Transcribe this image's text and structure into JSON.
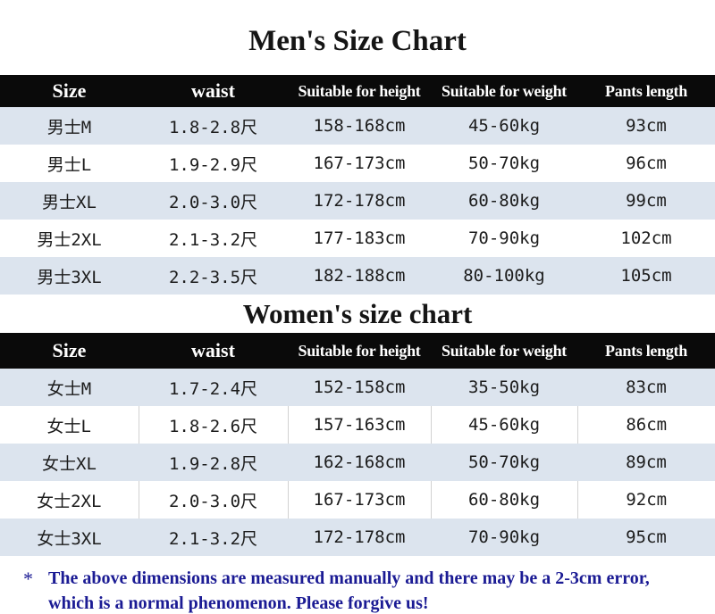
{
  "colors": {
    "header_bg": "#0a0a0a",
    "header_text": "#ffffff",
    "row_alt_bg": "#dce4ee",
    "row_bg": "#ffffff",
    "title_text": "#151515",
    "note_text": "#1b1b94"
  },
  "chart_data": [
    {
      "type": "table",
      "title": "Men's Size Chart",
      "columns": [
        "Size",
        "waist",
        "Suitable for height",
        "Suitable for weight",
        "Pants length"
      ],
      "rows": [
        [
          "男士M",
          "1.8-2.8尺",
          "158-168cm",
          "45-60kg",
          "93cm"
        ],
        [
          "男士L",
          "1.9-2.9尺",
          "167-173cm",
          "50-70kg",
          "96cm"
        ],
        [
          "男士XL",
          "2.0-3.0尺",
          "172-178cm",
          "60-80kg",
          "99cm"
        ],
        [
          "男士2XL",
          "2.1-3.2尺",
          "177-183cm",
          "70-90kg",
          "102cm"
        ],
        [
          "男士3XL",
          "2.2-3.5尺",
          "182-188cm",
          "80-100kg",
          "105cm"
        ]
      ]
    },
    {
      "type": "table",
      "title": "Women's size chart",
      "columns": [
        "Size",
        "waist",
        "Suitable for height",
        "Suitable for weight",
        "Pants length"
      ],
      "rows": [
        [
          "女士M",
          "1.7-2.4尺",
          "152-158cm",
          "35-50kg",
          "83cm"
        ],
        [
          "女士L",
          "1.8-2.6尺",
          "157-163cm",
          "45-60kg",
          "86cm"
        ],
        [
          "女士XL",
          "1.9-2.8尺",
          "162-168cm",
          "50-70kg",
          "89cm"
        ],
        [
          "女士2XL",
          "2.0-3.0尺",
          "167-173cm",
          "60-80kg",
          "92cm"
        ],
        [
          "女士3XL",
          "2.1-3.2尺",
          "172-178cm",
          "70-90kg",
          "95cm"
        ]
      ]
    }
  ],
  "footnote": {
    "marker": "*",
    "text": "The above dimensions are measured manually and there may be a 2-3cm error, which is a normal phenomenon. Please forgive us!"
  }
}
